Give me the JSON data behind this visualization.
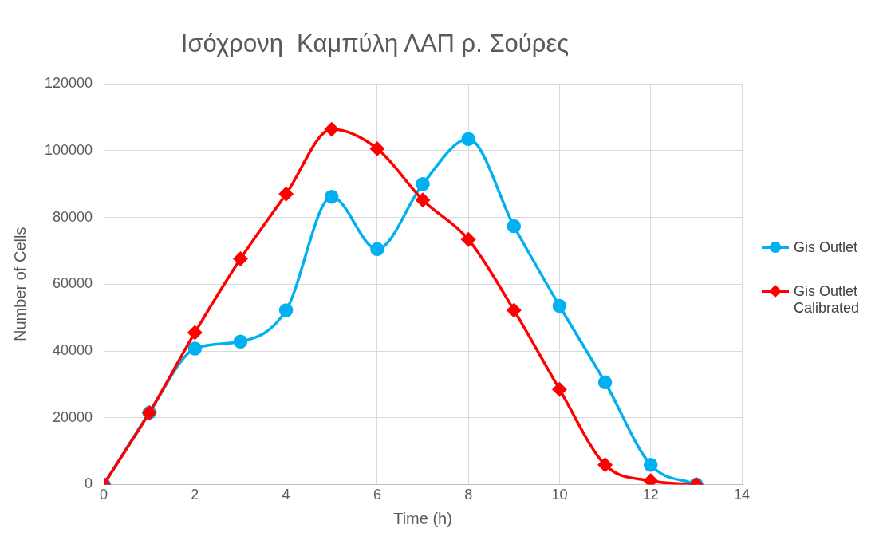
{
  "chart_data": {
    "type": "line",
    "title": "Ισόχρονη  Καμπύλη ΛΑΠ ρ. Σούρες",
    "xlabel": "Time (h)",
    "ylabel": "Number of Cells",
    "x": [
      0,
      1,
      2,
      3,
      4,
      5,
      6,
      7,
      8,
      9,
      10,
      11,
      12,
      13
    ],
    "series": [
      {
        "name": "Gis Outlet",
        "color": "#00b0f0",
        "marker": "circle",
        "values": [
          0,
          21500,
          40700,
          42800,
          52200,
          86200,
          70500,
          90000,
          103500,
          77400,
          53500,
          30600,
          5900,
          0
        ]
      },
      {
        "name": "Gis Outlet Calibrated",
        "color": "#ff0000",
        "marker": "diamond",
        "values": [
          0,
          21500,
          45500,
          67600,
          87000,
          106400,
          100600,
          85200,
          73400,
          52200,
          28500,
          5900,
          1100,
          0
        ]
      }
    ],
    "xlim": [
      0,
      14
    ],
    "xticks": [
      0,
      2,
      4,
      6,
      8,
      10,
      12,
      14
    ],
    "ylim": [
      0,
      120000
    ],
    "yticks": [
      0,
      20000,
      40000,
      60000,
      80000,
      100000,
      120000
    ],
    "grid": true,
    "legend": "right"
  }
}
